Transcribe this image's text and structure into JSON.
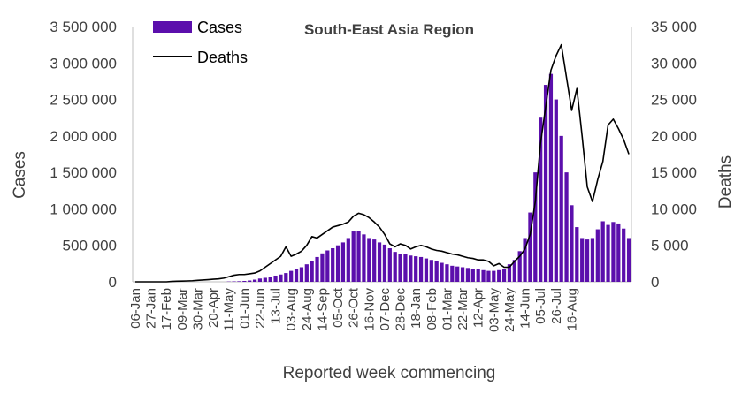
{
  "chart_data": {
    "type": "bar+line",
    "title": "South-East Asia Region",
    "xlabel": "Reported week commencing",
    "ylabel": "Cases",
    "y2label": "Deaths",
    "ylim": [
      0,
      3500000
    ],
    "y2lim": [
      0,
      35000
    ],
    "yticks": [
      "0",
      "500 000",
      "1 000 000",
      "1 500 000",
      "2 000 000",
      "2 500 000",
      "3 000 000",
      "3 500 000"
    ],
    "y2ticks": [
      "0",
      "5 000",
      "10 000",
      "15 000",
      "20 000",
      "25 000",
      "30 000",
      "35 000"
    ],
    "xtick_labels": [
      "06-Jan",
      "27-Jan",
      "17-Feb",
      "09-Mar",
      "30-Mar",
      "20-Apr",
      "11-May",
      "01-Jun",
      "22-Jun",
      "13-Jul",
      "03-Aug",
      "24-Aug",
      "14-Sep",
      "05-Oct",
      "26-Oct",
      "16-Nov",
      "07-Dec",
      "28-Dec",
      "18-Jan",
      "08-Feb",
      "01-Mar",
      "22-Mar",
      "12-Apr",
      "03-May",
      "24-May",
      "14-Jun",
      "05-Jul",
      "26-Jul",
      "16-Aug"
    ],
    "legend": {
      "placement": "top-left",
      "entries": [
        "Cases",
        "Deaths"
      ]
    },
    "colors": {
      "cases": "#5b0fac",
      "deaths": "#000000",
      "axis": "#bfbfbf"
    },
    "series": [
      {
        "name": "Cases",
        "type": "bar",
        "values": [
          0,
          0,
          0,
          0,
          0,
          0,
          0,
          0,
          0,
          0,
          0,
          0,
          0,
          0,
          0,
          0,
          0,
          0,
          4000,
          6000,
          8000,
          12000,
          18000,
          30000,
          45000,
          55000,
          70000,
          85000,
          100000,
          120000,
          150000,
          180000,
          200000,
          240000,
          280000,
          340000,
          390000,
          430000,
          460000,
          500000,
          540000,
          600000,
          690000,
          700000,
          650000,
          600000,
          580000,
          540000,
          510000,
          460000,
          410000,
          380000,
          380000,
          360000,
          350000,
          340000,
          320000,
          300000,
          280000,
          260000,
          240000,
          220000,
          210000,
          200000,
          190000,
          180000,
          170000,
          160000,
          150000,
          150000,
          160000,
          180000,
          240000,
          300000,
          420000,
          600000,
          950000,
          1500000,
          2250000,
          2700000,
          2850000,
          2500000,
          2000000,
          1500000,
          1050000,
          750000,
          600000,
          580000,
          600000,
          720000,
          830000,
          780000,
          820000,
          800000,
          730000,
          600000
        ]
      },
      {
        "name": "Deaths",
        "type": "line",
        "values": [
          0,
          0,
          0,
          0,
          0,
          0,
          0,
          50,
          80,
          100,
          120,
          150,
          200,
          250,
          300,
          350,
          400,
          500,
          700,
          900,
          1000,
          1000,
          1100,
          1200,
          1500,
          2000,
          2500,
          3000,
          3500,
          4800,
          3500,
          3800,
          4200,
          5000,
          6200,
          6000,
          6500,
          7000,
          7500,
          7700,
          7900,
          8200,
          9000,
          9400,
          9200,
          8800,
          8200,
          7500,
          6500,
          5200,
          4800,
          5200,
          5000,
          4500,
          4800,
          5000,
          4800,
          4500,
          4300,
          4200,
          4000,
          3800,
          3700,
          3500,
          3300,
          3200,
          3000,
          3000,
          2800,
          2200,
          2500,
          2000,
          2000,
          2800,
          3500,
          4500,
          6500,
          11000,
          19000,
          24000,
          29000,
          31000,
          32500,
          28000,
          23500,
          26500,
          20000,
          13000,
          11000,
          14000,
          16500,
          21500,
          22300,
          21000,
          19500,
          17500
        ]
      }
    ]
  }
}
